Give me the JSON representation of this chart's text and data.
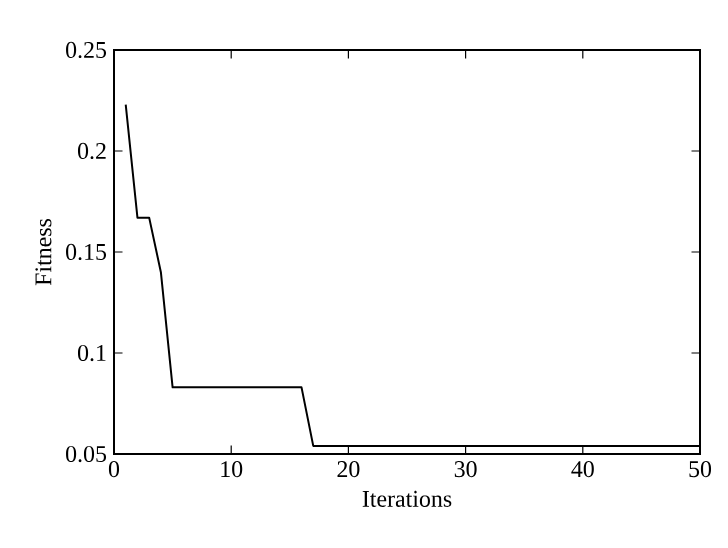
{
  "chart_data": {
    "type": "line",
    "xlabel": "Iterations",
    "ylabel": "Fitness",
    "color": "#000000",
    "x": [
      1,
      2,
      3,
      4,
      5,
      16,
      17,
      50
    ],
    "values": [
      0.223,
      0.167,
      0.167,
      0.14,
      0.083,
      0.083,
      0.054,
      0.054
    ],
    "xlim": [
      0,
      50
    ],
    "xticks": [
      0,
      10,
      20,
      30,
      40,
      50
    ],
    "ylim": [
      0.05,
      0.25
    ],
    "yticks": [
      {
        "value": 0.05,
        "label": "0.05"
      },
      {
        "value": 0.1,
        "label": "0.1"
      },
      {
        "value": 0.15,
        "label": "0.15"
      },
      {
        "value": 0.2,
        "label": "0.2"
      },
      {
        "value": 0.25,
        "label": "0.25"
      }
    ],
    "line_style": "solid"
  }
}
